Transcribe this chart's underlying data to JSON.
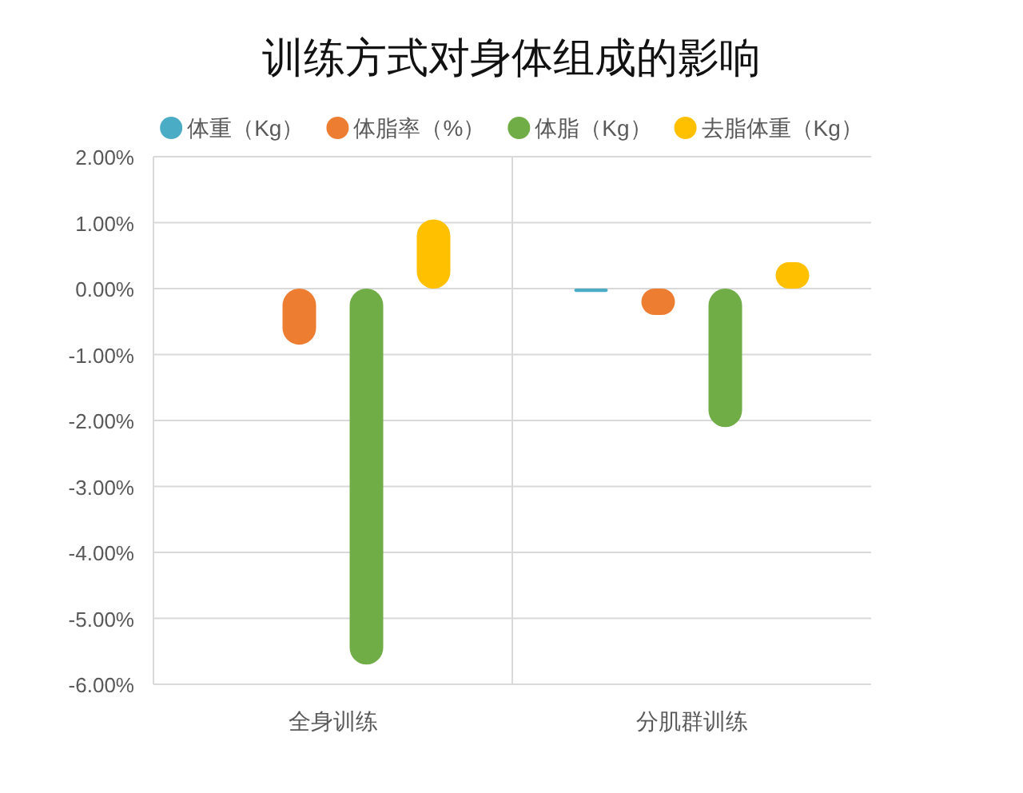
{
  "chart_data": {
    "type": "bar",
    "title": "训练方式对身体组成的影响",
    "categories": [
      "全身训练",
      "分肌群训练"
    ],
    "series": [
      {
        "name": "体重（Kg）",
        "color": "#4bacc6",
        "values": [
          0,
          -0.05
        ]
      },
      {
        "name": "体脂率（%）",
        "color": "#ed7d31",
        "values": [
          -0.85,
          -0.4
        ]
      },
      {
        "name": "体脂（Kg）",
        "color": "#70ad47",
        "values": [
          -5.7,
          -2.1
        ]
      },
      {
        "name": "去脂体重（Kg）",
        "color": "#ffc000",
        "values": [
          1.05,
          0.4
        ]
      }
    ],
    "ylim": [
      -6,
      2
    ],
    "yticks": [
      {
        "value": 2,
        "label": "2.00%"
      },
      {
        "value": 1,
        "label": "1.00%"
      },
      {
        "value": 0,
        "label": "0.00%"
      },
      {
        "value": -1,
        "label": "-1.00%"
      },
      {
        "value": -2,
        "label": "-2.00%"
      },
      {
        "value": -3,
        "label": "-3.00%"
      },
      {
        "value": -4,
        "label": "-4.00%"
      },
      {
        "value": -5,
        "label": "-5.00%"
      },
      {
        "value": -6,
        "label": "-6.00%"
      }
    ],
    "grid": true,
    "legend": "top"
  }
}
